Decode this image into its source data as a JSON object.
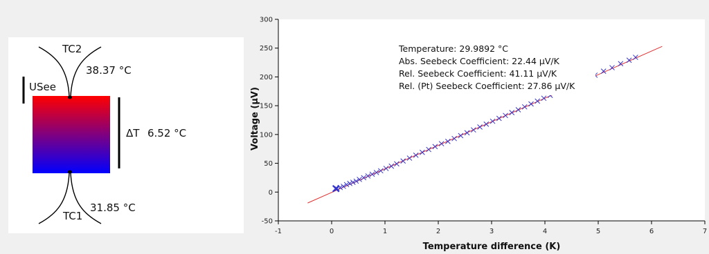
{
  "diagram": {
    "tc2_label": "TC2",
    "tc2_temperature": "38.37 °C",
    "usee_label": "USee",
    "delta_t_label": "ΔT",
    "delta_t_value": "6.52 °C",
    "tc1_label": "TC1",
    "tc1_temperature": "31.85 °C",
    "gradient_top_color": "#ff0000",
    "gradient_bottom_color": "#0000ff"
  },
  "chart_data": {
    "type": "scatter",
    "title": "",
    "xlabel": "Temperature difference (K)",
    "ylabel": "Voltage (µV)",
    "xlim": [
      -1,
      7
    ],
    "ylim": [
      -50,
      300
    ],
    "xticks": [
      -1,
      0,
      1,
      2,
      3,
      4,
      5,
      6,
      7
    ],
    "yticks": [
      -50,
      0,
      50,
      100,
      150,
      200,
      250,
      300
    ],
    "grid": false,
    "marker_color": "#3333cc",
    "fit_color": "#e03030",
    "fit_line": {
      "x": [
        -0.45,
        6.2
      ],
      "y": [
        -19,
        253
      ]
    },
    "highlight_point": {
      "x": 0.08,
      "y": 6
    },
    "series": [
      {
        "values": [
          [
            0.1,
            6
          ],
          [
            0.16,
            8
          ],
          [
            0.22,
            10
          ],
          [
            0.28,
            13
          ],
          [
            0.34,
            15
          ],
          [
            0.4,
            17
          ],
          [
            0.46,
            19
          ],
          [
            0.52,
            22
          ],
          [
            0.6,
            25
          ],
          [
            0.68,
            28
          ],
          [
            0.76,
            31
          ],
          [
            0.84,
            34
          ],
          [
            0.92,
            37
          ],
          [
            1.02,
            41
          ],
          [
            1.12,
            45
          ],
          [
            1.22,
            49
          ],
          [
            1.34,
            54
          ],
          [
            1.46,
            59
          ],
          [
            1.58,
            64
          ],
          [
            1.7,
            69
          ],
          [
            1.82,
            74
          ],
          [
            1.94,
            79
          ],
          [
            2.06,
            84
          ],
          [
            2.18,
            88
          ],
          [
            2.3,
            93
          ],
          [
            2.42,
            98
          ],
          [
            2.54,
            103
          ],
          [
            2.66,
            108
          ],
          [
            2.78,
            113
          ],
          [
            2.9,
            118
          ],
          [
            3.02,
            123
          ],
          [
            3.14,
            128
          ],
          [
            3.26,
            133
          ],
          [
            3.38,
            138
          ],
          [
            3.5,
            143
          ],
          [
            3.62,
            148
          ],
          [
            3.74,
            153
          ],
          [
            3.86,
            158
          ],
          [
            3.98,
            163
          ],
          [
            4.1,
            168
          ],
          [
            4.94,
            203
          ],
          [
            5.1,
            210
          ],
          [
            5.26,
            216
          ],
          [
            5.42,
            223
          ],
          [
            5.58,
            229
          ],
          [
            5.7,
            234
          ]
        ]
      }
    ],
    "annotations": [
      "Temperature: 29.9892 °C",
      "Abs. Seebeck Coefficient: 22.44 µV/K",
      "Rel. Seebeck Coefficient: 41.11 µV/K",
      "Rel. (Pt) Seebeck Coefficient: 27.86 µV/K"
    ]
  }
}
